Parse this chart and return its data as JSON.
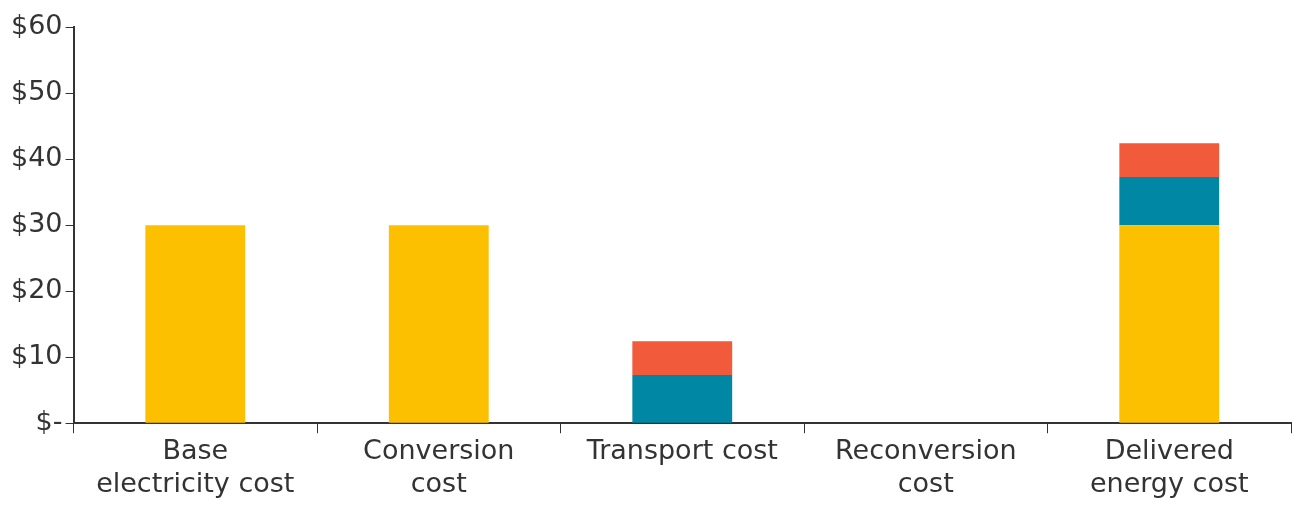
{
  "chart_data": {
    "type": "bar",
    "stacked": true,
    "categories": [
      "Base\nelectricity cost",
      "Conversion\ncost",
      "Transport cost",
      "Reconversion\ncost",
      "Delivered\nenergy cost"
    ],
    "series": [
      {
        "color": "#fcc000",
        "values": [
          30,
          30,
          0,
          0,
          30
        ]
      },
      {
        "color": "#0087a4",
        "values": [
          0,
          0,
          7.3,
          0,
          7.3
        ]
      },
      {
        "color": "#f15a3a",
        "values": [
          0,
          0,
          5.1,
          0,
          5.1
        ]
      }
    ],
    "ylim": [
      0,
      60
    ],
    "yticks": [
      {
        "value": 0,
        "label": "$-"
      },
      {
        "value": 10,
        "label": "$10"
      },
      {
        "value": 20,
        "label": "$20"
      },
      {
        "value": 30,
        "label": "$30"
      },
      {
        "value": 40,
        "label": "$40"
      },
      {
        "value": 50,
        "label": "$50"
      },
      {
        "value": 60,
        "label": "$60"
      }
    ],
    "grid": false,
    "legend": false
  }
}
